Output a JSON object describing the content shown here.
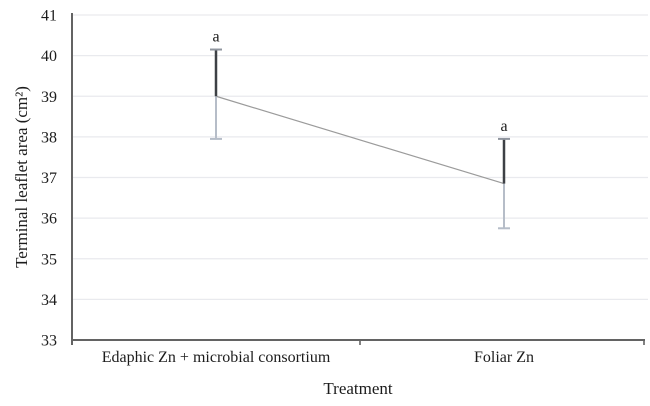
{
  "chart_data": {
    "type": "line",
    "title": "",
    "xlabel": "Treatment",
    "ylabel": "Terminal leaflet area (cm²)",
    "categories": [
      "Edaphic Zn + microbial consortium",
      "Foliar Zn"
    ],
    "series": [
      {
        "name": "Terminal leaflet area",
        "values": [
          39.0,
          36.85
        ],
        "error_upper": [
          40.15,
          37.95
        ],
        "error_lower": [
          37.95,
          35.75
        ],
        "point_labels": [
          "a",
          "a"
        ]
      }
    ],
    "ylim": [
      33,
      41
    ],
    "ytick_step": 1,
    "grid": "horizontal",
    "legend": "none",
    "colors": {
      "text": "#1c1c1c",
      "axis": "#636363",
      "gridline": "#e9eaee",
      "connector_line": "#9b9b9b",
      "error_upper": "#3d4045",
      "error_lower": "#b6bdc8",
      "cap_top": "#8f959e",
      "cap_bottom": "#b6bdc8"
    }
  }
}
